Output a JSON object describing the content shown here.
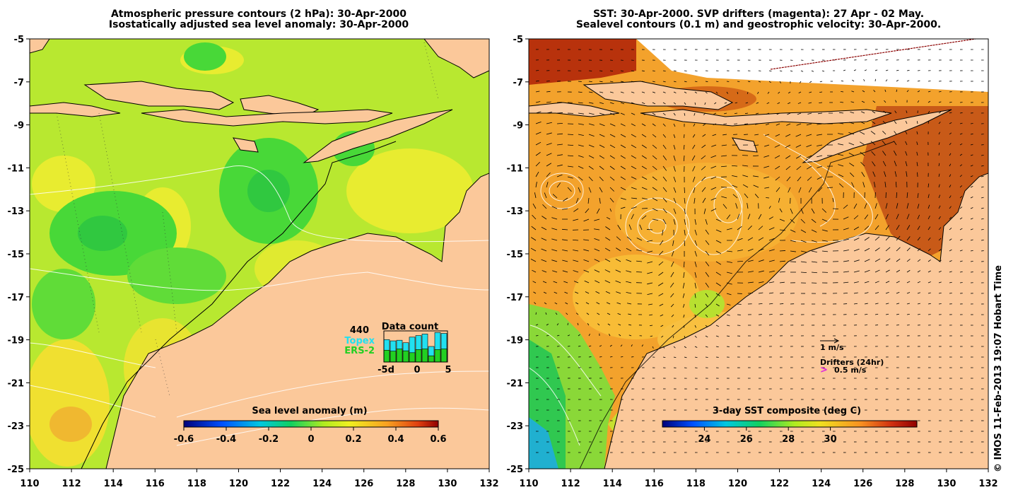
{
  "left_panel": {
    "title_line1": "Atmospheric pressure contours (2 hPa): 30-Apr-2000",
    "title_line2": "Isostatically adjusted sea level anomaly: 30-Apr-2000",
    "colorbar": {
      "label": "Sea level anomaly (m)",
      "ticks": [
        "-0.6",
        "-0.4",
        "-0.2",
        "0",
        "0.2",
        "0.4",
        "0.6"
      ]
    },
    "data_count": {
      "title": "Data count",
      "max": "440",
      "topex_label": "Topex",
      "ers_label": "ERS-2",
      "x_ticks": [
        "-5d",
        "0",
        "5"
      ],
      "topex_color": "#22e0f0",
      "ers_color": "#22d022"
    }
  },
  "right_panel": {
    "title_line1": "SST: 30-Apr-2000. SVP drifters (magenta): 27 Apr - 02 May.",
    "title_line2": "Sealevel contours (0.1 m) and geostrophic velocity: 30-Apr-2000.",
    "colorbar": {
      "label": "3-day SST composite (deg C)",
      "ticks": [
        "24",
        "26",
        "28",
        "30"
      ]
    },
    "legend": {
      "velocity": "1 m/s",
      "drifters": "Drifters (24hr)",
      "drifter_speed": "0.5 m/s",
      "drifter_color": "#e020e0"
    }
  },
  "axes": {
    "y_ticks": [
      "-5",
      "-7",
      "-9",
      "-11",
      "-13",
      "-15",
      "-17",
      "-19",
      "-21",
      "-23",
      "-25"
    ],
    "x_ticks": [
      "110",
      "112",
      "114",
      "116",
      "118",
      "120",
      "122",
      "124",
      "126",
      "128",
      "130",
      "132"
    ]
  },
  "credit": "© IMOS 11-Feb-2013 19:07 Hobart Time",
  "colors": {
    "land": "#fbc89a",
    "sla_background": "#b8e830",
    "sst_background": "#f3a22c"
  }
}
